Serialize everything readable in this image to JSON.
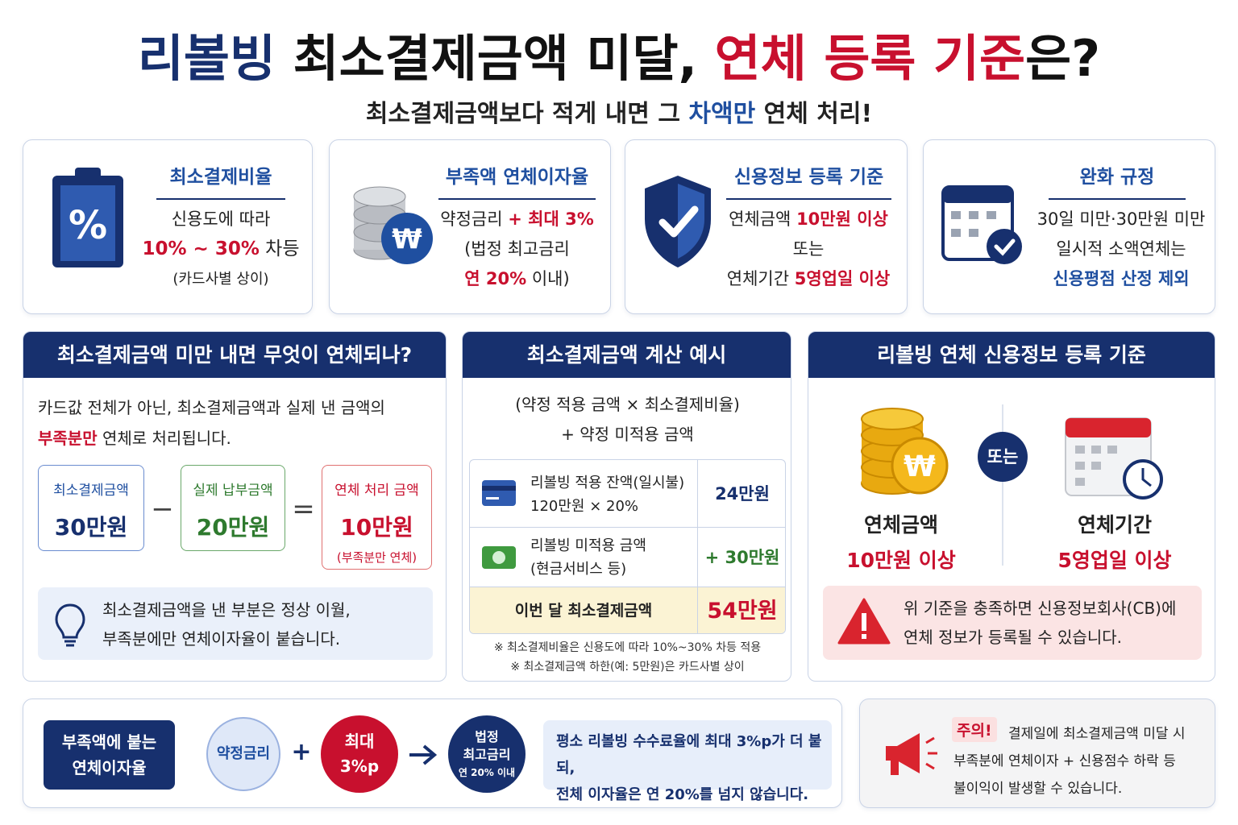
{
  "title": [
    "리볼빙",
    " 최소결제금액 미달, ",
    "연체 등록 기준",
    "은?"
  ],
  "subtitle": [
    "최소결제금액보다 적게 내면 그 ",
    "차액만",
    " 연체 처리!"
  ],
  "icons": {
    "percent": "%",
    "won": "₩"
  },
  "cards": [
    {
      "title": "최소결제비율",
      "lines": [
        [
          "신용도에 따라"
        ],
        [
          "10% ~ 30%",
          " 차등"
        ],
        [
          "(카드사별 상이)"
        ]
      ]
    },
    {
      "title": "부족액 연체이자율",
      "lines": [
        [
          "약정금리 ",
          "+ 최대 3%"
        ],
        [
          "(법정 최고금리"
        ],
        [
          "연 20%",
          " 이내)"
        ]
      ]
    },
    {
      "title": "신용정보 등록 기준",
      "lines": [
        [
          "연체금액 ",
          "10만원 이상"
        ],
        [
          "또는"
        ],
        [
          "연체기간 ",
          "5영업일 이상"
        ]
      ]
    },
    {
      "title": "완화 규정",
      "lines": [
        [
          "30일 미만·30만원 미만"
        ],
        [
          "일시적 소액연체는"
        ],
        [
          "신용평점 산정 제외"
        ]
      ]
    }
  ],
  "panel1": {
    "header": "최소결제금액 미만 내면 무엇이 연체되나?",
    "intro": [
      [
        "카드값 전체가 아닌, 최소결제금액과 실제 낸 금액의"
      ],
      [
        "부족분만",
        " 연체로 처리됩니다."
      ]
    ],
    "boxes": [
      {
        "label": "최소결제금액",
        "value": "30만원"
      },
      {
        "label": "실제 납부금액",
        "value": "20만원"
      },
      {
        "label": "연체 처리 금액",
        "value": "10만원",
        "note": "(부족분만 연체)"
      }
    ],
    "operators": [
      "−",
      "="
    ],
    "tip": [
      "최소결제금액을 낸 부분은 정상 이월,",
      "부족분에만 연체이자율이 붙습니다."
    ]
  },
  "panel2": {
    "header": "최소결제금액 계산 예시",
    "formula": [
      "(약정 적용 금액 × 최소결제비율)",
      "+ 약정 미적용 금액"
    ],
    "rows": [
      {
        "desc": [
          "리볼빙 적용 잔액(일시불)",
          "120만원 × 20%"
        ],
        "amount": "24만원"
      },
      {
        "desc": [
          "리볼빙 미적용 금액",
          "(현금서비스 등)"
        ],
        "amount": "+ 30만원"
      }
    ],
    "total": {
      "label": "이번 달 최소결제금액",
      "amount": "54만원"
    },
    "notes": [
      "※ 최소결제비율은 신용도에 따라 10%~30% 차등 적용",
      "※ 최소결제금액 하한(예: 5만원)은 카드사별 상이"
    ]
  },
  "panel3": {
    "header": "리볼빙 연체 신용정보 등록 기준",
    "left": {
      "label": "연체금액",
      "value": "10만원 이상"
    },
    "or": "또는",
    "right": {
      "label": "연체기간",
      "value": "5영업일 이상"
    },
    "warning": [
      "위 기준을 충족하면 신용정보회사(CB)에",
      "연체 정보가 등록될 수 있습니다."
    ]
  },
  "bottom": {
    "badge": [
      "부족액에 붙는",
      "연체이자율"
    ],
    "base": "약정금리",
    "plus": "+",
    "extra": [
      "최대",
      "3%p"
    ],
    "legal": [
      "법정",
      "최고금리",
      "연 20% 이내"
    ],
    "note": [
      "평소 리볼빙 수수료율에 최대 3%p가 더 붙되,",
      "전체 이자율은 연 20%를 넘지 않습니다."
    ]
  },
  "caution": {
    "label": "주의!",
    "text": [
      "결제일에 최소결제금액 미달 시",
      "부족분에 연체이자 + 신용점수 하락 등",
      "불이익이 발생할 수 있습니다."
    ]
  }
}
